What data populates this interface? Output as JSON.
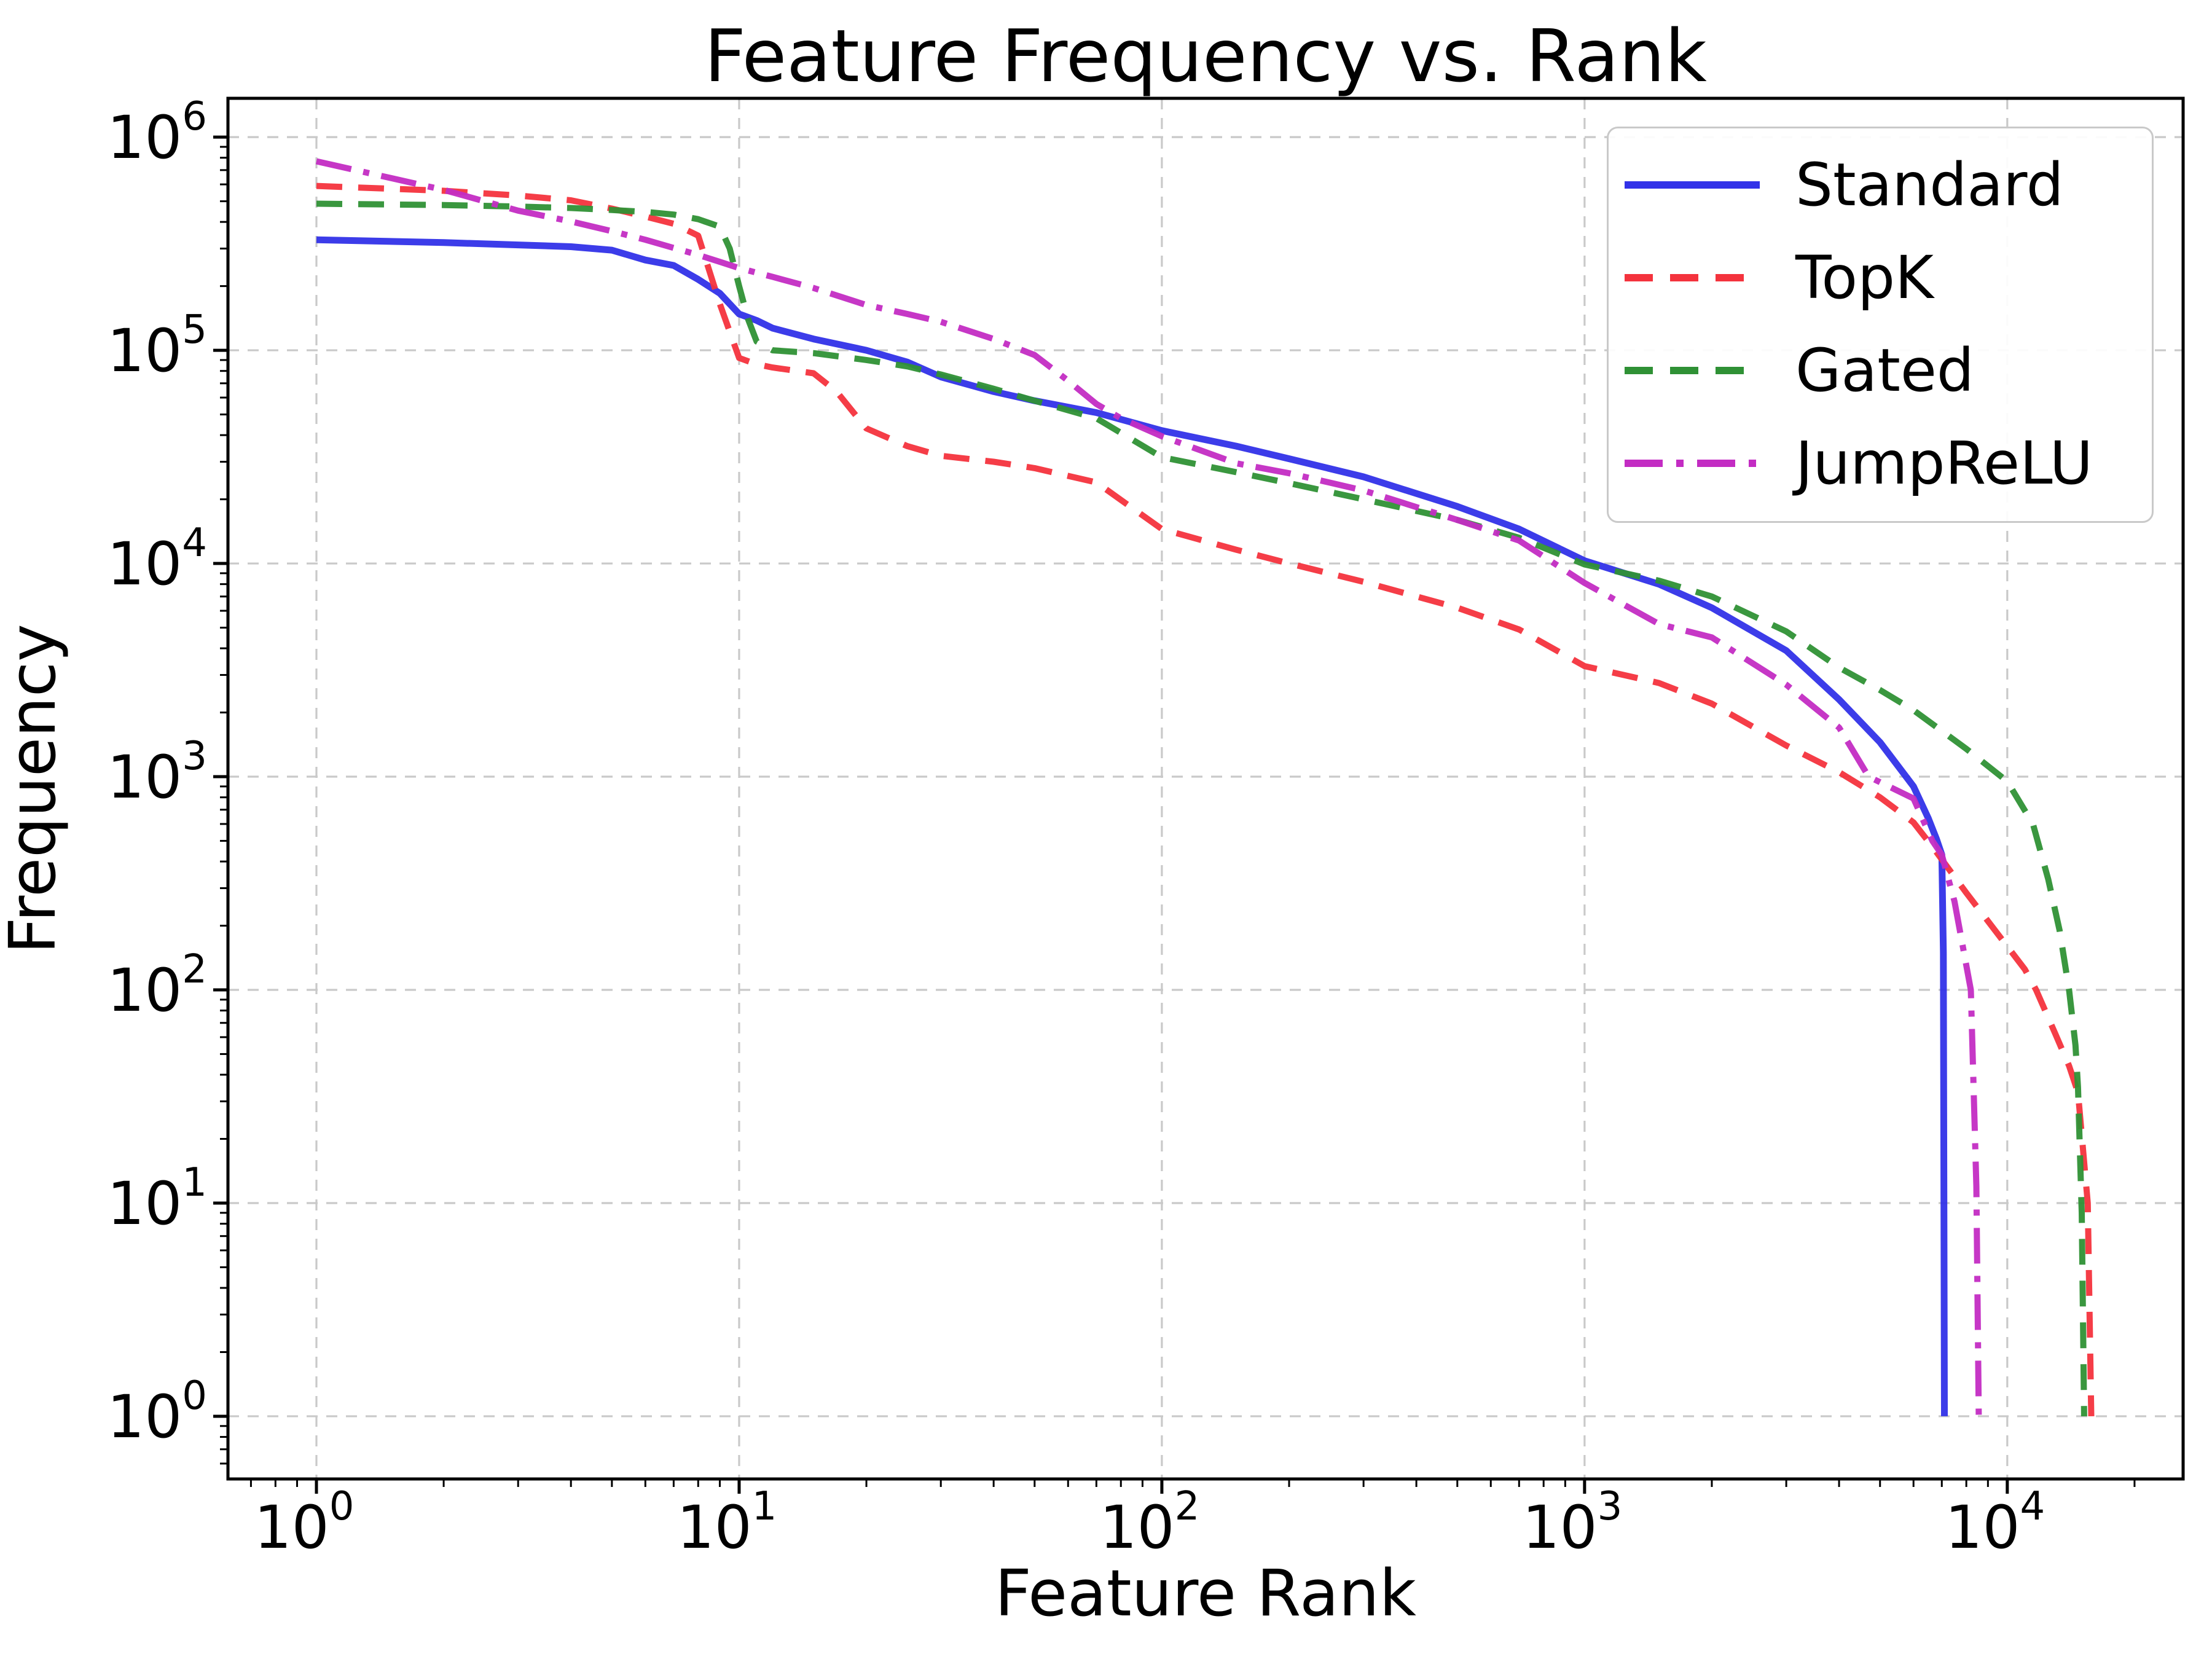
{
  "title": "Feature Frequency vs. Rank",
  "chart_data": {
    "type": "line",
    "title": "Feature Frequency vs. Rank",
    "xlabel": "Feature Rank",
    "ylabel": "Frequency",
    "x_scale": "log",
    "y_scale": "log",
    "xlim": [
      0.6176,
      26060
    ],
    "ylim": [
      0.508,
      1520000
    ],
    "x_tick_exponents": [
      0,
      1,
      2,
      3,
      4
    ],
    "y_tick_exponents": [
      0,
      1,
      2,
      3,
      4,
      5,
      6
    ],
    "grid": true,
    "grid_color": "#c9c9c9",
    "legend_position": "upper right",
    "series": [
      {
        "name": "Standard",
        "color": "#3232e8",
        "style": "solid",
        "points": [
          [
            1,
            330000
          ],
          [
            2,
            320000
          ],
          [
            3,
            312000
          ],
          [
            4,
            306000
          ],
          [
            5,
            295000
          ],
          [
            6,
            265000
          ],
          [
            7,
            250000
          ],
          [
            8,
            215000
          ],
          [
            9,
            185000
          ],
          [
            10,
            148000
          ],
          [
            11,
            138000
          ],
          [
            12,
            127000
          ],
          [
            15,
            113000
          ],
          [
            20,
            100000
          ],
          [
            25,
            88000
          ],
          [
            30,
            75000
          ],
          [
            40,
            64000
          ],
          [
            50,
            58000
          ],
          [
            70,
            51000
          ],
          [
            100,
            42000
          ],
          [
            150,
            35500
          ],
          [
            200,
            31000
          ],
          [
            300,
            25500
          ],
          [
            500,
            18500
          ],
          [
            700,
            14500
          ],
          [
            1000,
            10300
          ],
          [
            1500,
            8000
          ],
          [
            2000,
            6200
          ],
          [
            3000,
            3900
          ],
          [
            4000,
            2300
          ],
          [
            5000,
            1450
          ],
          [
            6000,
            900
          ],
          [
            6500,
            640
          ],
          [
            6800,
            510
          ],
          [
            7000,
            430
          ],
          [
            7060,
            150
          ],
          [
            7100,
            1
          ]
        ]
      },
      {
        "name": "TopK",
        "color": "#f4333d",
        "style": "dashed",
        "points": [
          [
            1,
            590000
          ],
          [
            2,
            560000
          ],
          [
            3,
            532000
          ],
          [
            4,
            505000
          ],
          [
            5,
            462000
          ],
          [
            6,
            424000
          ],
          [
            7,
            392000
          ],
          [
            8,
            345000
          ],
          [
            9,
            165000
          ],
          [
            10,
            92000
          ],
          [
            11,
            86000
          ],
          [
            12,
            83000
          ],
          [
            15,
            78000
          ],
          [
            17,
            64000
          ],
          [
            20,
            43000
          ],
          [
            25,
            35500
          ],
          [
            30,
            32000
          ],
          [
            40,
            30000
          ],
          [
            50,
            28000
          ],
          [
            70,
            24000
          ],
          [
            100,
            14500
          ],
          [
            150,
            11600
          ],
          [
            200,
            10000
          ],
          [
            300,
            8200
          ],
          [
            500,
            6200
          ],
          [
            700,
            4900
          ],
          [
            1000,
            3300
          ],
          [
            1500,
            2750
          ],
          [
            2000,
            2200
          ],
          [
            3000,
            1400
          ],
          [
            4000,
            1050
          ],
          [
            5000,
            800
          ],
          [
            6000,
            610
          ],
          [
            6650,
            470
          ],
          [
            8000,
            285
          ],
          [
            10000,
            160
          ],
          [
            11000,
            125
          ],
          [
            11700,
            100
          ],
          [
            13000,
            62
          ],
          [
            14000,
            44
          ],
          [
            14700,
            33
          ],
          [
            15500,
            10
          ],
          [
            15800,
            1
          ]
        ]
      },
      {
        "name": "Gated",
        "color": "#2f9135",
        "style": "dashed",
        "points": [
          [
            1,
            487000
          ],
          [
            2,
            480000
          ],
          [
            3,
            472000
          ],
          [
            4,
            465000
          ],
          [
            5,
            455000
          ],
          [
            6,
            446000
          ],
          [
            7,
            433000
          ],
          [
            8,
            412000
          ],
          [
            9,
            380000
          ],
          [
            9.5,
            300000
          ],
          [
            10,
            200000
          ],
          [
            10.5,
            140000
          ],
          [
            11,
            110000
          ],
          [
            12,
            100000
          ],
          [
            15,
            97000
          ],
          [
            20,
            90000
          ],
          [
            25,
            84000
          ],
          [
            30,
            77000
          ],
          [
            40,
            66000
          ],
          [
            50,
            58000
          ],
          [
            70,
            48000
          ],
          [
            100,
            31500
          ],
          [
            150,
            26800
          ],
          [
            200,
            23800
          ],
          [
            300,
            20000
          ],
          [
            500,
            16000
          ],
          [
            700,
            13200
          ],
          [
            1000,
            9900
          ],
          [
            1500,
            8300
          ],
          [
            2000,
            7000
          ],
          [
            3000,
            4800
          ],
          [
            4000,
            3250
          ],
          [
            5000,
            2550
          ],
          [
            6000,
            2050
          ],
          [
            8000,
            1350
          ],
          [
            10000,
            950
          ],
          [
            11500,
            600
          ],
          [
            12500,
            330
          ],
          [
            13300,
            190
          ],
          [
            14000,
            100
          ],
          [
            14500,
            55
          ],
          [
            14700,
            35
          ],
          [
            15000,
            9
          ],
          [
            15200,
            1
          ]
        ]
      },
      {
        "name": "JumpReLU",
        "color": "#c32cc3",
        "style": "dashdot",
        "points": [
          [
            1,
            770000
          ],
          [
            2,
            565000
          ],
          [
            3,
            452000
          ],
          [
            4,
            402000
          ],
          [
            5,
            362000
          ],
          [
            6,
            330000
          ],
          [
            7,
            302000
          ],
          [
            8,
            280000
          ],
          [
            9,
            260000
          ],
          [
            10,
            243000
          ],
          [
            12,
            221000
          ],
          [
            15,
            196000
          ],
          [
            20,
            163000
          ],
          [
            25,
            148000
          ],
          [
            30,
            136000
          ],
          [
            40,
            113000
          ],
          [
            50,
            95000
          ],
          [
            60,
            72000
          ],
          [
            70,
            56000
          ],
          [
            80,
            48000
          ],
          [
            100,
            39500
          ],
          [
            150,
            29500
          ],
          [
            200,
            26500
          ],
          [
            300,
            22000
          ],
          [
            500,
            16000
          ],
          [
            700,
            12800
          ],
          [
            1000,
            8100
          ],
          [
            1500,
            5200
          ],
          [
            2000,
            4500
          ],
          [
            3000,
            2700
          ],
          [
            4000,
            1700
          ],
          [
            4700,
            1000
          ],
          [
            6000,
            790
          ],
          [
            6650,
            500
          ],
          [
            7000,
            430
          ],
          [
            7500,
            260
          ],
          [
            8200,
            100
          ],
          [
            8450,
            12
          ],
          [
            8560,
            1
          ]
        ]
      }
    ]
  },
  "legend": {
    "items": [
      {
        "label": "Standard"
      },
      {
        "label": "TopK"
      },
      {
        "label": "Gated"
      },
      {
        "label": "JumpReLU"
      }
    ]
  }
}
